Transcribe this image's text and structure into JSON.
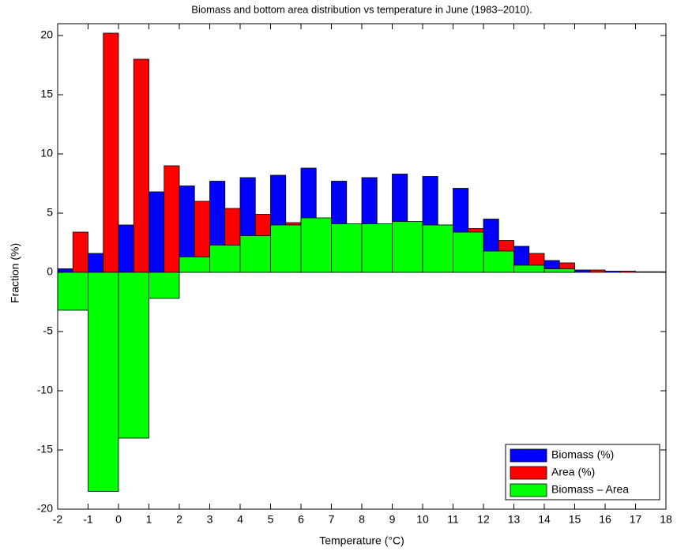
{
  "chart_data": {
    "type": "bar",
    "title": "Biomass and bottom area distribution vs temperature in June (1983–2010).",
    "x_label": "Temperature (°C)",
    "y_label": "Fraction (%)",
    "x": [
      -1.5,
      -0.5,
      0.5,
      1.5,
      2.5,
      3.5,
      4.5,
      5.5,
      6.5,
      7.5,
      8.5,
      9.5,
      10.5,
      11.5,
      12.5,
      13.5,
      14.5,
      15.5,
      16.5,
      17.5
    ],
    "series": [
      {
        "name": "Biomass (%)",
        "color": "#0000ff",
        "values": [
          0.3,
          1.6,
          4.0,
          6.8,
          7.3,
          7.7,
          8.0,
          8.2,
          8.8,
          7.7,
          8.0,
          8.3,
          8.1,
          7.1,
          4.5,
          2.2,
          1.0,
          0.2,
          0.1,
          0.05
        ]
      },
      {
        "name": "Area (%)",
        "color": "#ff0000",
        "values": [
          3.4,
          20.2,
          18.0,
          9.0,
          6.0,
          5.4,
          4.9,
          4.2,
          4.2,
          3.6,
          3.9,
          3.9,
          4.0,
          3.7,
          2.7,
          1.6,
          0.8,
          0.2,
          0.1,
          0.05
        ]
      },
      {
        "name": "Biomass – Area",
        "color": "#00ff00",
        "values": [
          -3.2,
          -18.5,
          -14.0,
          -2.2,
          1.3,
          2.3,
          3.1,
          4.0,
          4.6,
          4.1,
          4.1,
          4.3,
          4.0,
          3.4,
          1.8,
          0.6,
          0.3,
          0.0,
          0.0,
          0.0
        ]
      }
    ],
    "xlim": [
      -2,
      18
    ],
    "xticks": [
      -2,
      -1,
      0,
      1,
      2,
      3,
      4,
      5,
      6,
      7,
      8,
      9,
      10,
      11,
      12,
      13,
      14,
      15,
      16,
      17,
      18
    ],
    "ylim": [
      -20,
      21
    ],
    "yticks": [
      -20,
      -15,
      -10,
      -5,
      0,
      5,
      10,
      15,
      20
    ],
    "legend": "lower right"
  }
}
